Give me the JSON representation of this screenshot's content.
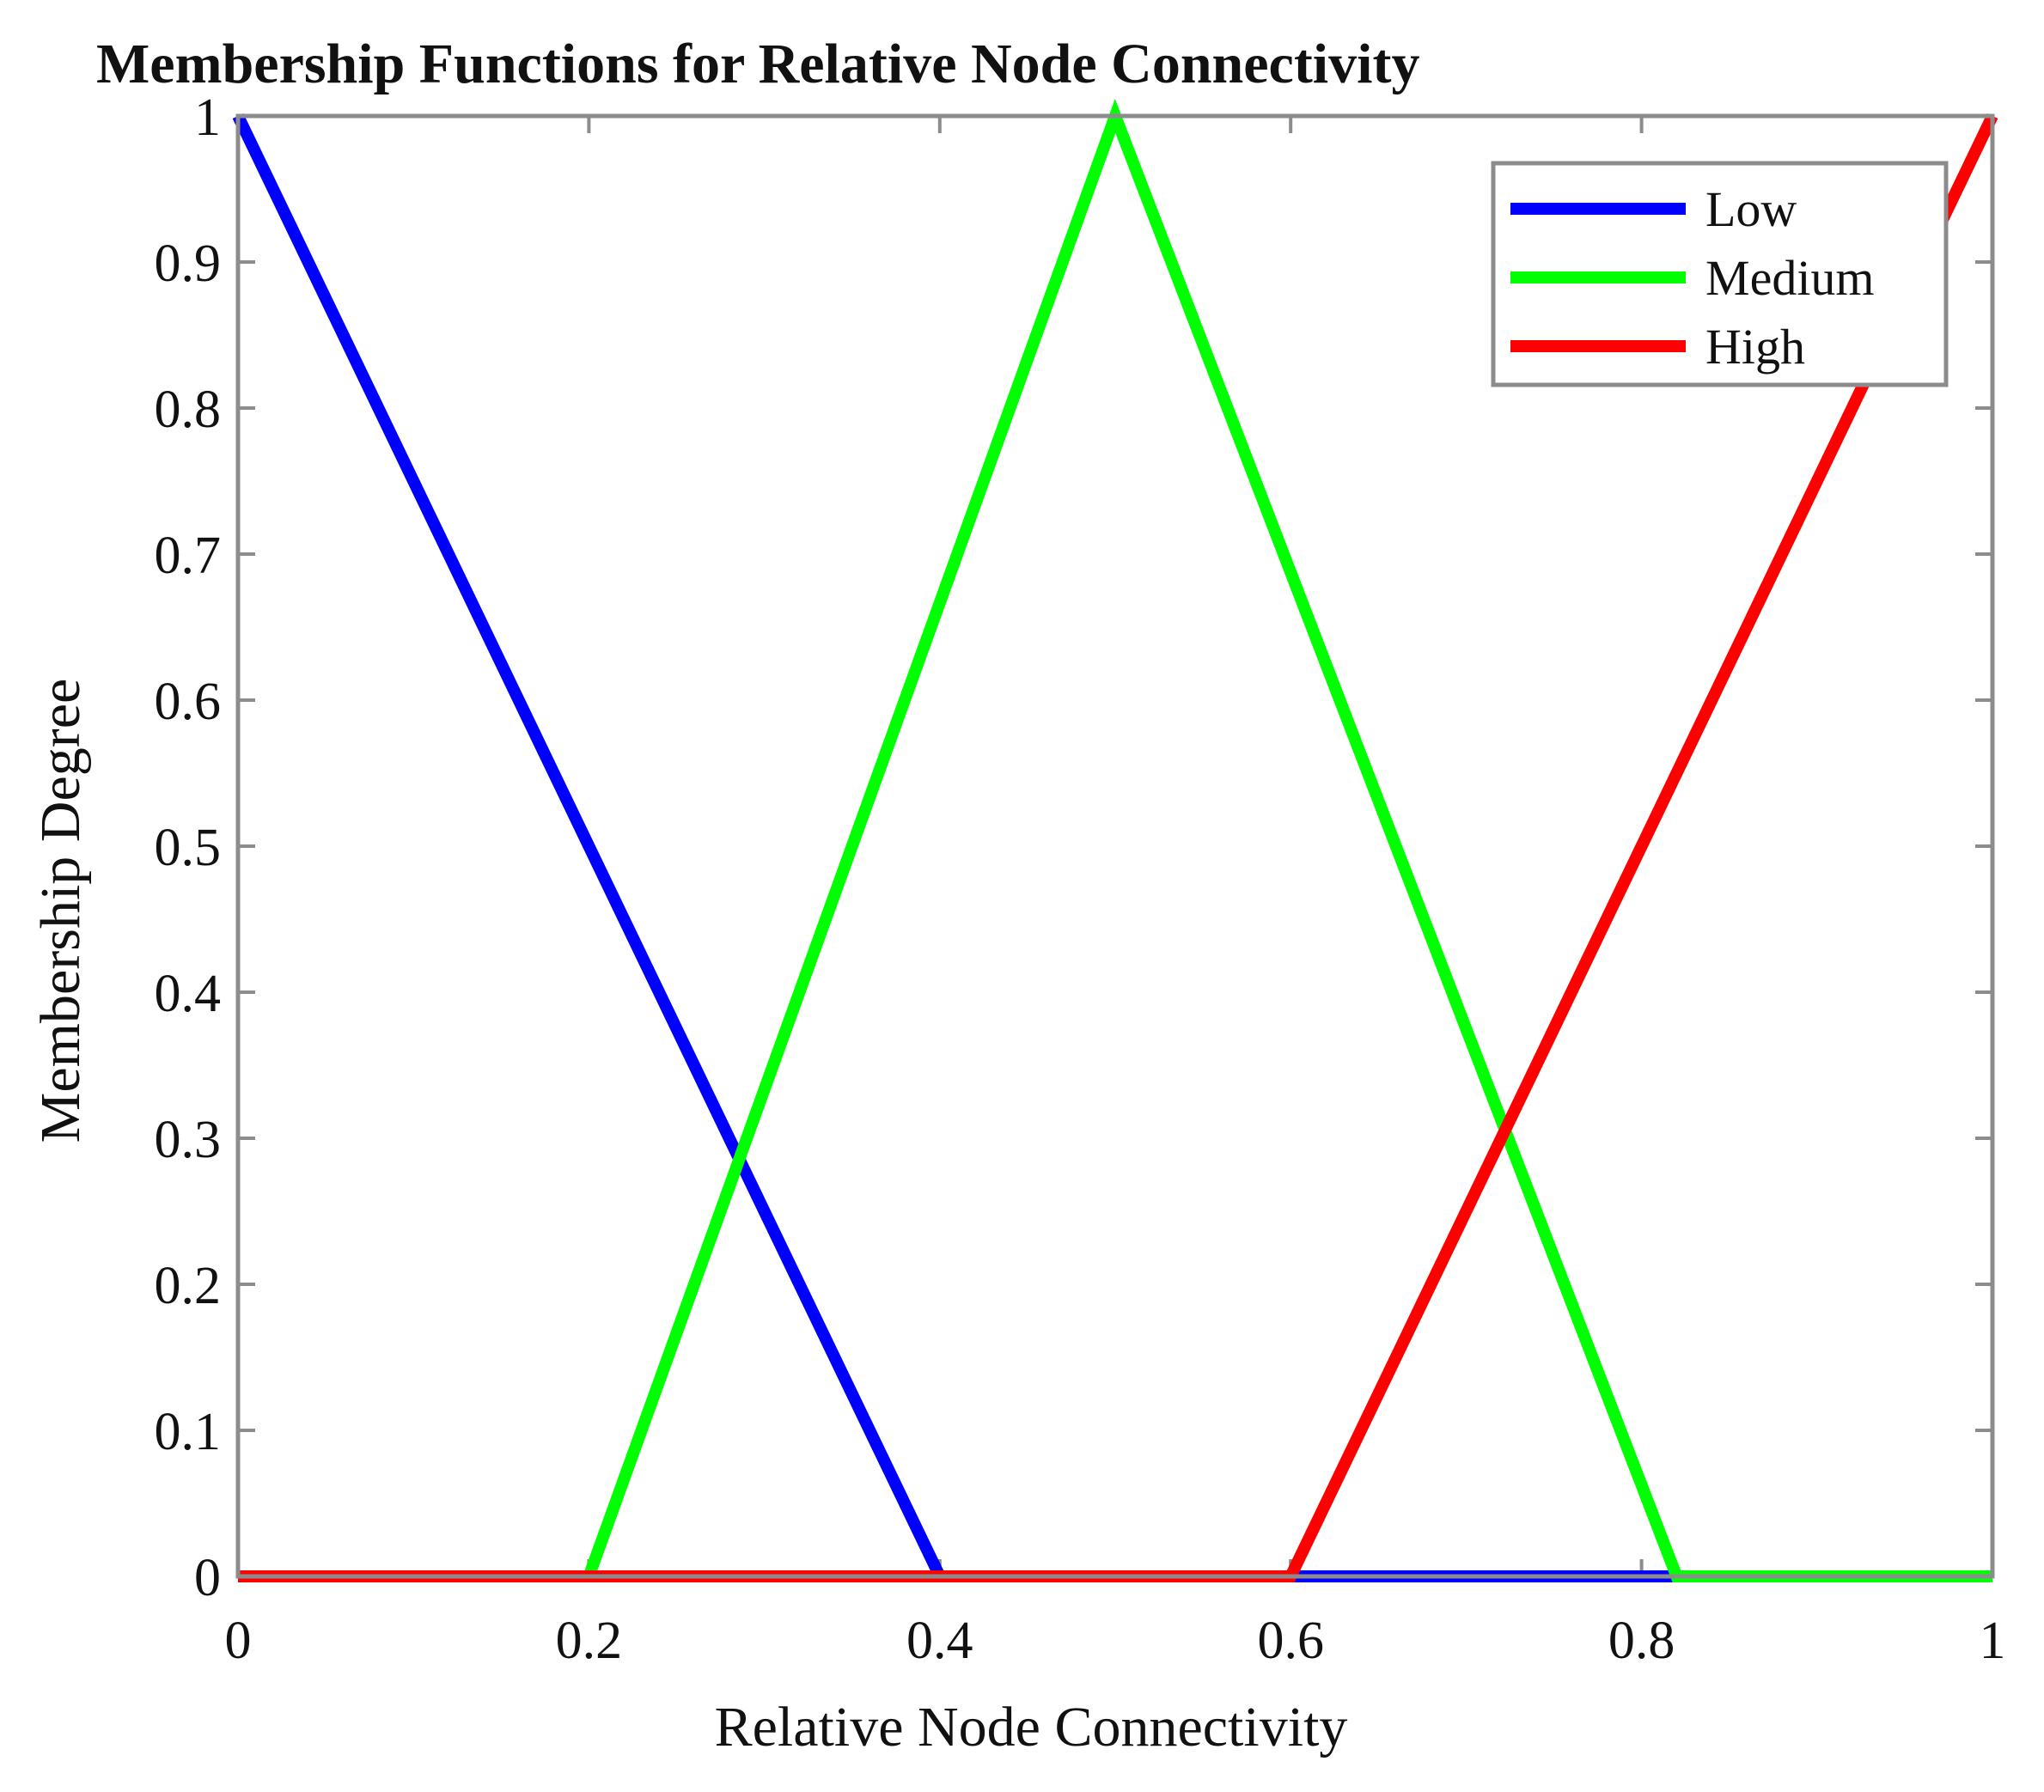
{
  "chart_data": {
    "type": "line",
    "title": "Membership Functions for Relative Node Connectivity",
    "xlabel": "Relative Node Connectivity",
    "ylabel": "Membership Degree",
    "xlim": [
      0,
      1
    ],
    "ylim": [
      0,
      1
    ],
    "xticks": [
      "0",
      "0.2",
      "0.4",
      "0.6",
      "0.8",
      "1"
    ],
    "xtick_values": [
      0,
      0.2,
      0.4,
      0.6,
      0.8,
      1
    ],
    "yticks": [
      "0",
      "0.1",
      "0.2",
      "0.3",
      "0.4",
      "0.5",
      "0.6",
      "0.7",
      "0.8",
      "0.9",
      "1"
    ],
    "ytick_values": [
      0,
      0.1,
      0.2,
      0.3,
      0.4,
      0.5,
      0.6,
      0.7,
      0.8,
      0.9,
      1
    ],
    "grid": false,
    "legend_position": "top-right",
    "series": [
      {
        "name": "Low",
        "color": "#0000ff",
        "x": [
          0,
          0.4,
          1
        ],
        "y": [
          1,
          0,
          0
        ]
      },
      {
        "name": "Medium",
        "color": "#00ff00",
        "x": [
          0,
          0.2,
          0.5,
          0.82,
          1
        ],
        "y": [
          0,
          0,
          1,
          0,
          0
        ]
      },
      {
        "name": "High",
        "color": "#ff0000",
        "x": [
          0,
          0.6,
          1
        ],
        "y": [
          0,
          0,
          1
        ]
      }
    ]
  }
}
